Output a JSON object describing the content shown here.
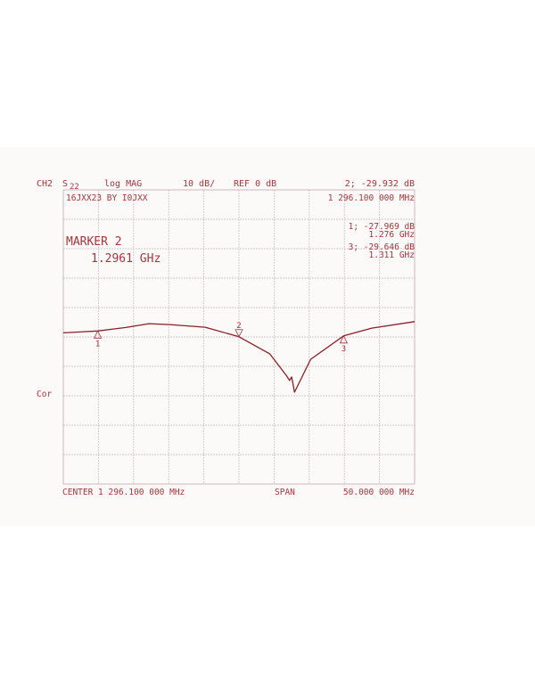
{
  "header": {
    "channel": "CH2",
    "param": "S",
    "param_sub": "22",
    "format": "log MAG",
    "scale": "10 dB/",
    "ref": "REF 0 dB",
    "active_marker_readout": "2; -29.932 dB",
    "active_marker_freq": "1 296.100 000 MHz",
    "title_label": "16JXX23 BY I0JXX"
  },
  "marker_box": {
    "label": "MARKER 2",
    "value": "1.2961 GHz"
  },
  "marker_readouts": [
    {
      "line1": "1; -27.969 dB",
      "line2": "1.276 GHz"
    },
    {
      "line1": "3; -29.646 dB",
      "line2": "1.311 GHz"
    }
  ],
  "side_label": "Cor",
  "footer": {
    "center": "CENTER 1 296.100 000 MHz",
    "span_label": "SPAN",
    "span": "50.000 000 MHz"
  },
  "colors": {
    "trace": "#8a1e24",
    "text": "#a8343a",
    "grid": "#c9b8bc"
  },
  "chart_data": {
    "type": "line",
    "title": "",
    "xlabel": "",
    "ylabel": "",
    "x_unit": "MHz",
    "y_unit": "dB",
    "xlim": [
      1271.1,
      1321.1
    ],
    "ylim": [
      -80,
      20
    ],
    "x_divisions": 10,
    "y_divisions": 10,
    "grid": true,
    "series": [
      {
        "x": [
          1271.1,
          1273.5,
          1276.0,
          1280.0,
          1283.3,
          1286.2,
          1291.3,
          1296.1,
          1300.5,
          1302.9,
          1303.3,
          1303.6,
          1304.0,
          1306.3,
          1311.0,
          1315.0,
          1321.1
        ],
        "y": [
          -28.6,
          -28.3,
          -27.97,
          -26.8,
          -25.5,
          -25.8,
          -26.7,
          -29.93,
          -35.8,
          -43.3,
          -44.8,
          -43.6,
          -48.8,
          -37.6,
          -29.65,
          -27.0,
          -24.8
        ]
      }
    ],
    "markers": [
      {
        "label": "1",
        "x": 1276.0,
        "y": -27.969,
        "direction": "up"
      },
      {
        "label": "2",
        "x": 1296.1,
        "y": -29.932,
        "direction": "down"
      },
      {
        "label": "3",
        "x": 1311.0,
        "y": -29.646,
        "direction": "up"
      }
    ]
  }
}
